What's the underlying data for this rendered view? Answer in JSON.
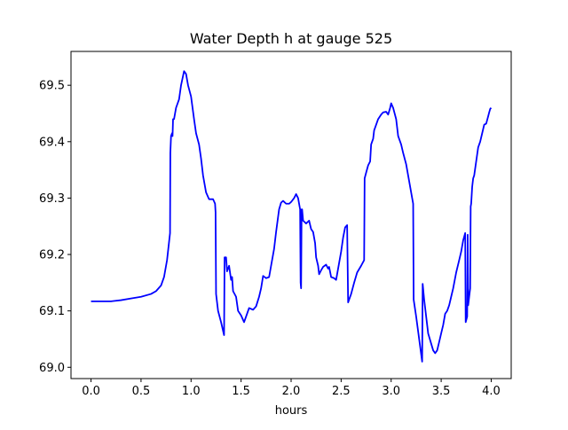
{
  "chart_data": {
    "type": "line",
    "title": "Water Depth h at gauge 525",
    "xlabel": "hours",
    "ylabel": "",
    "xlim": [
      -0.2,
      4.2
    ],
    "ylim": [
      68.98,
      69.56
    ],
    "xticks": [
      0.0,
      0.5,
      1.0,
      1.5,
      2.0,
      2.5,
      3.0,
      3.5,
      4.0
    ],
    "xtick_labels": [
      "0.0",
      "0.5",
      "1.0",
      "1.5",
      "2.0",
      "2.5",
      "3.0",
      "3.5",
      "4.0"
    ],
    "yticks": [
      69.0,
      69.1,
      69.2,
      69.3,
      69.4,
      69.5
    ],
    "ytick_labels": [
      "69.0",
      "69.1",
      "69.2",
      "69.3",
      "69.4",
      "69.5"
    ],
    "grid": false,
    "line_color": "#0000ff",
    "series": [
      {
        "color": "#0000ff",
        "points": [
          [
            0.0,
            69.117
          ],
          [
            0.1,
            69.117
          ],
          [
            0.2,
            69.117
          ],
          [
            0.3,
            69.119
          ],
          [
            0.4,
            69.122
          ],
          [
            0.5,
            69.125
          ],
          [
            0.6,
            69.13
          ],
          [
            0.65,
            69.135
          ],
          [
            0.7,
            69.145
          ],
          [
            0.73,
            69.16
          ],
          [
            0.76,
            69.19
          ],
          [
            0.79,
            69.238
          ],
          [
            0.793,
            69.38
          ],
          [
            0.8,
            69.41
          ],
          [
            0.81,
            69.415
          ],
          [
            0.815,
            69.41
          ],
          [
            0.82,
            69.44
          ],
          [
            0.83,
            69.44
          ],
          [
            0.85,
            69.46
          ],
          [
            0.88,
            69.475
          ],
          [
            0.9,
            69.5
          ],
          [
            0.93,
            69.525
          ],
          [
            0.95,
            69.52
          ],
          [
            0.97,
            69.5
          ],
          [
            1.0,
            69.48
          ],
          [
            1.03,
            69.44
          ],
          [
            1.05,
            69.415
          ],
          [
            1.08,
            69.395
          ],
          [
            1.1,
            69.37
          ],
          [
            1.12,
            69.34
          ],
          [
            1.15,
            69.31
          ],
          [
            1.18,
            69.298
          ],
          [
            1.22,
            69.298
          ],
          [
            1.24,
            69.29
          ],
          [
            1.245,
            69.275
          ],
          [
            1.25,
            69.13
          ],
          [
            1.27,
            69.1
          ],
          [
            1.3,
            69.08
          ],
          [
            1.33,
            69.057
          ],
          [
            1.335,
            69.195
          ],
          [
            1.35,
            69.195
          ],
          [
            1.36,
            69.17
          ],
          [
            1.38,
            69.18
          ],
          [
            1.4,
            69.155
          ],
          [
            1.41,
            69.16
          ],
          [
            1.42,
            69.135
          ],
          [
            1.45,
            69.125
          ],
          [
            1.47,
            69.1
          ],
          [
            1.5,
            69.092
          ],
          [
            1.53,
            69.08
          ],
          [
            1.55,
            69.09
          ],
          [
            1.58,
            69.105
          ],
          [
            1.62,
            69.102
          ],
          [
            1.65,
            69.108
          ],
          [
            1.68,
            69.125
          ],
          [
            1.7,
            69.14
          ],
          [
            1.72,
            69.162
          ],
          [
            1.75,
            69.158
          ],
          [
            1.78,
            69.16
          ],
          [
            1.8,
            69.18
          ],
          [
            1.83,
            69.21
          ],
          [
            1.85,
            69.24
          ],
          [
            1.88,
            69.28
          ],
          [
            1.9,
            69.292
          ],
          [
            1.92,
            69.295
          ],
          [
            1.95,
            69.29
          ],
          [
            1.98,
            69.29
          ],
          [
            2.0,
            69.293
          ],
          [
            2.03,
            69.3
          ],
          [
            2.05,
            69.307
          ],
          [
            2.07,
            69.3
          ],
          [
            2.09,
            69.28
          ],
          [
            2.095,
            69.15
          ],
          [
            2.1,
            69.14
          ],
          [
            2.105,
            69.28
          ],
          [
            2.11,
            69.28
          ],
          [
            2.12,
            69.26
          ],
          [
            2.15,
            69.255
          ],
          [
            2.18,
            69.26
          ],
          [
            2.2,
            69.245
          ],
          [
            2.22,
            69.24
          ],
          [
            2.24,
            69.22
          ],
          [
            2.25,
            69.195
          ],
          [
            2.27,
            69.18
          ],
          [
            2.28,
            69.165
          ],
          [
            2.3,
            69.172
          ],
          [
            2.32,
            69.178
          ],
          [
            2.35,
            69.182
          ],
          [
            2.37,
            69.175
          ],
          [
            2.38,
            69.178
          ],
          [
            2.4,
            69.16
          ],
          [
            2.43,
            69.158
          ],
          [
            2.45,
            69.155
          ],
          [
            2.47,
            69.175
          ],
          [
            2.5,
            69.205
          ],
          [
            2.52,
            69.23
          ],
          [
            2.54,
            69.248
          ],
          [
            2.56,
            69.252
          ],
          [
            2.57,
            69.115
          ],
          [
            2.6,
            69.13
          ],
          [
            2.63,
            69.15
          ],
          [
            2.66,
            69.168
          ],
          [
            2.7,
            69.18
          ],
          [
            2.73,
            69.19
          ],
          [
            2.735,
            69.335
          ],
          [
            2.75,
            69.345
          ],
          [
            2.77,
            69.358
          ],
          [
            2.79,
            69.365
          ],
          [
            2.8,
            69.395
          ],
          [
            2.82,
            69.405
          ],
          [
            2.83,
            69.42
          ],
          [
            2.85,
            69.43
          ],
          [
            2.87,
            69.44
          ],
          [
            2.9,
            69.448
          ],
          [
            2.92,
            69.452
          ],
          [
            2.95,
            69.453
          ],
          [
            2.97,
            69.448
          ],
          [
            2.99,
            69.46
          ],
          [
            3.0,
            69.468
          ],
          [
            3.02,
            69.46
          ],
          [
            3.05,
            69.44
          ],
          [
            3.07,
            69.41
          ],
          [
            3.1,
            69.395
          ],
          [
            3.12,
            69.38
          ],
          [
            3.15,
            69.36
          ],
          [
            3.18,
            69.33
          ],
          [
            3.2,
            69.31
          ],
          [
            3.21,
            69.3
          ],
          [
            3.22,
            69.29
          ],
          [
            3.225,
            69.12
          ],
          [
            3.25,
            69.09
          ],
          [
            3.28,
            69.05
          ],
          [
            3.31,
            69.01
          ],
          [
            3.315,
            69.148
          ],
          [
            3.33,
            69.12
          ],
          [
            3.35,
            69.09
          ],
          [
            3.37,
            69.06
          ],
          [
            3.4,
            69.042
          ],
          [
            3.42,
            69.03
          ],
          [
            3.44,
            69.025
          ],
          [
            3.46,
            69.03
          ],
          [
            3.48,
            69.045
          ],
          [
            3.5,
            69.06
          ],
          [
            3.52,
            69.075
          ],
          [
            3.54,
            69.095
          ],
          [
            3.56,
            69.1
          ],
          [
            3.58,
            69.11
          ],
          [
            3.6,
            69.125
          ],
          [
            3.62,
            69.14
          ],
          [
            3.65,
            69.168
          ],
          [
            3.68,
            69.19
          ],
          [
            3.7,
            69.205
          ],
          [
            3.72,
            69.225
          ],
          [
            3.74,
            69.238
          ],
          [
            3.745,
            69.08
          ],
          [
            3.76,
            69.09
          ],
          [
            3.765,
            69.235
          ],
          [
            3.77,
            69.11
          ],
          [
            3.78,
            69.125
          ],
          [
            3.79,
            69.14
          ],
          [
            3.795,
            69.285
          ],
          [
            3.8,
            69.29
          ],
          [
            3.81,
            69.32
          ],
          [
            3.82,
            69.335
          ],
          [
            3.83,
            69.34
          ],
          [
            3.85,
            69.365
          ],
          [
            3.87,
            69.39
          ],
          [
            3.89,
            69.4
          ],
          [
            3.91,
            69.415
          ],
          [
            3.93,
            69.43
          ],
          [
            3.95,
            69.432
          ],
          [
            3.97,
            69.445
          ],
          [
            3.98,
            69.452
          ],
          [
            3.99,
            69.458
          ],
          [
            4.0,
            69.46
          ]
        ]
      }
    ]
  }
}
